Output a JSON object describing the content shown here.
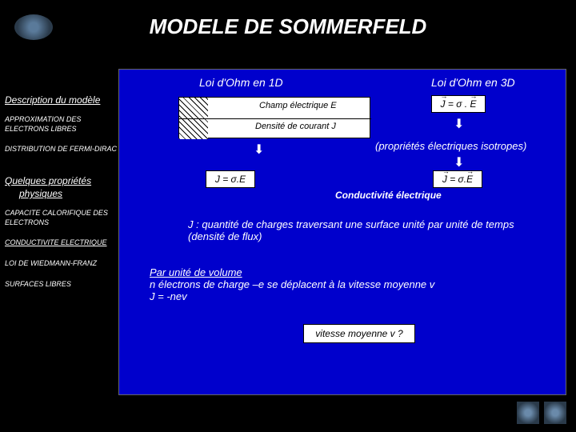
{
  "title": "MODELE DE SOMMERFELD",
  "main": {
    "header1d": "Loi d'Ohm en 1D",
    "header3d": "Loi d'Ohm en 3D",
    "field_upper": "Champ électrique E",
    "field_lower": "Densité de courant J",
    "eq3d": "J = σ . E",
    "iso": "(propriétés électriques isotropes)",
    "eq1d_box": "J = σ.E",
    "eq3d_box2": "J = σ.E",
    "cond_label": "Conductivité électrique",
    "j_desc": "J : quantité de charges traversant une surface unité par unité de temps (densité de flux)",
    "vol_title": "Par unité de volume",
    "vol_line2": "n électrons de charge –e se déplacent à la vitesse moyenne v",
    "vol_line3": "J = -nev",
    "v_question": "vitesse moyenne v ?"
  },
  "sidebar": {
    "h1": "Description du modèle",
    "item1": "APPROXIMATION DES ELECTRONS LIBRES",
    "item2": "DISTRIBUTION DE FERMI-DIRAC",
    "h2a": "Quelques propriétés",
    "h2b": "physiques",
    "item3": "CAPACITE CALORIFIQUE DES ELECTRONS",
    "item4": "CONDUCTIVITE ELECTRIQUE",
    "item5": "LOI DE WIEDMANN-FRANZ",
    "item6": "SURFACES LIBRES"
  },
  "colors": {
    "background": "#000000",
    "panel": "#0000cc",
    "box": "#ffffff",
    "text": "#ffffff"
  }
}
